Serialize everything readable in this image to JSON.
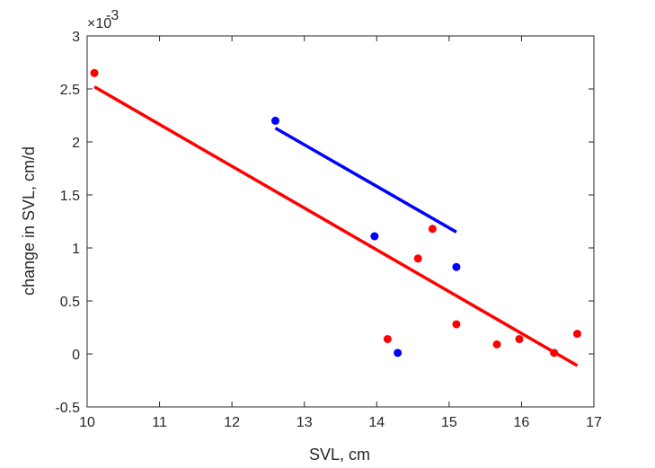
{
  "chart_data": {
    "type": "scatter",
    "xlabel": "SVL, cm",
    "ylabel": "change in SVL, cm/d",
    "y_exponent_label": "×10",
    "y_exponent_value": "-3",
    "xlim": [
      10,
      17
    ],
    "ylim": [
      -0.5,
      3
    ],
    "x_ticks": [
      "10",
      "11",
      "12",
      "13",
      "14",
      "15",
      "16",
      "17"
    ],
    "y_ticks": [
      "-0.5",
      "0",
      "0.5",
      "1",
      "1.5",
      "2",
      "2.5",
      "3"
    ],
    "grid": false,
    "axis_color": "#262626",
    "series": [
      {
        "color": "#ff0000",
        "points": [
          {
            "x": 10.1,
            "y": 2.65
          },
          {
            "x": 14.15,
            "y": 0.14
          },
          {
            "x": 14.57,
            "y": 0.9
          },
          {
            "x": 14.77,
            "y": 1.18
          },
          {
            "x": 15.1,
            "y": 0.28
          },
          {
            "x": 15.66,
            "y": 0.09
          },
          {
            "x": 15.97,
            "y": 0.14
          },
          {
            "x": 16.45,
            "y": 0.01
          },
          {
            "x": 16.77,
            "y": 0.19
          }
        ],
        "fit": {
          "x1": 10.1,
          "y1": 2.52,
          "x2": 16.77,
          "y2": -0.11
        }
      },
      {
        "color": "#0000ff",
        "points": [
          {
            "x": 12.6,
            "y": 2.2
          },
          {
            "x": 13.97,
            "y": 1.11
          },
          {
            "x": 14.29,
            "y": 0.01
          },
          {
            "x": 15.1,
            "y": 0.82
          }
        ],
        "fit": {
          "x1": 12.6,
          "y1": 2.13,
          "x2": 15.1,
          "y2": 1.15
        }
      }
    ]
  }
}
